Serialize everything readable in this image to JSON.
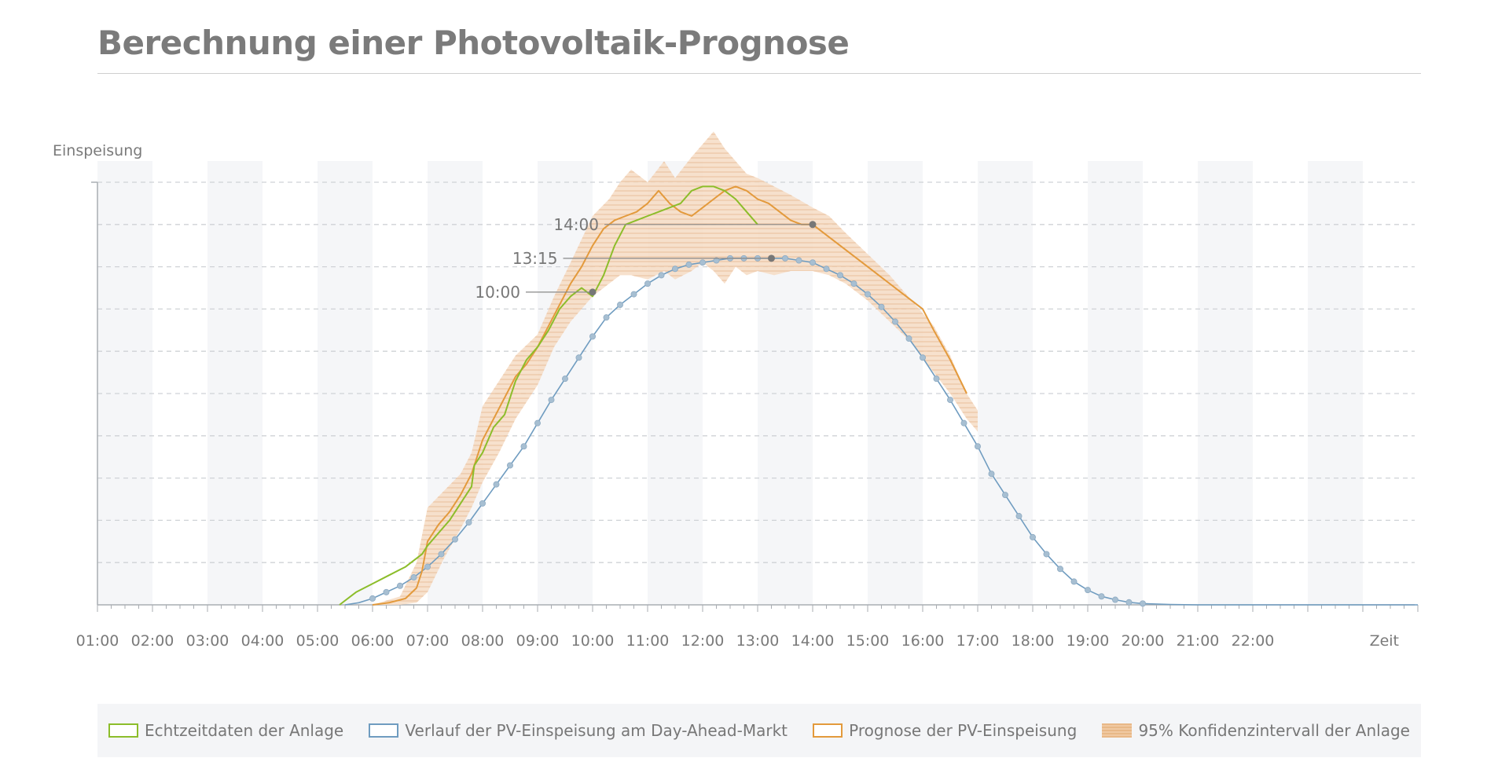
{
  "title": "Berechnung einer Photovoltaik-Prognose",
  "colors": {
    "actual": "#8cbd2a",
    "dayahead": "#6f9cc0",
    "forecast": "#e39a3c",
    "confidence": "#ecb98a",
    "grid": "#cfd2d6",
    "axis": "#a9adb2"
  },
  "legend": {
    "actual": "Echtzeitdaten der Anlage",
    "dayahead": "Verlauf der PV-Einspeisung am Day-Ahead-Markt",
    "forecast": "Prognose der PV-Einspeisung",
    "confidence": "95% Konfidenzintervall der Anlage"
  },
  "chart_data": {
    "type": "line",
    "ylabel": "Einspeisung",
    "xlabel": "Zeit",
    "x_ticks": [
      "01:00",
      "02:00",
      "03:00",
      "04:00",
      "05:00",
      "06:00",
      "07:00",
      "08:00",
      "09:00",
      "10:00",
      "11:00",
      "12:00",
      "13:00",
      "14:00",
      "15:00",
      "16:00",
      "17:00",
      "18:00",
      "19:00",
      "20:00",
      "21:00",
      "22:00"
    ],
    "xlim": [
      1,
      25
    ],
    "ylim": [
      0,
      10
    ],
    "annotations": [
      {
        "label": "10:00",
        "x": 10.0,
        "y": 7.4
      },
      {
        "label": "13:15",
        "x": 13.25,
        "y": 8.2
      },
      {
        "label": "14:00",
        "x": 14.0,
        "y": 9.0
      }
    ],
    "series": [
      {
        "name": "Echtzeitdaten der Anlage",
        "key": "actual",
        "x": [
          5.4,
          5.7,
          6.0,
          6.3,
          6.6,
          6.9,
          7.0,
          7.2,
          7.4,
          7.6,
          7.8,
          7.85,
          8.0,
          8.2,
          8.4,
          8.6,
          8.8,
          9.0,
          9.2,
          9.4,
          9.6,
          9.8,
          10.0,
          10.2,
          10.4,
          10.6,
          10.8,
          11.0,
          11.2,
          11.4,
          11.6,
          11.8,
          12.0,
          12.2,
          12.4,
          12.6,
          12.8,
          13.0
        ],
        "y": [
          0.0,
          0.3,
          0.5,
          0.7,
          0.9,
          1.2,
          1.4,
          1.7,
          2.0,
          2.4,
          2.8,
          3.3,
          3.6,
          4.2,
          4.5,
          5.3,
          5.8,
          6.1,
          6.5,
          7.0,
          7.3,
          7.5,
          7.3,
          7.8,
          8.5,
          9.0,
          9.1,
          9.2,
          9.3,
          9.4,
          9.5,
          9.8,
          9.9,
          9.9,
          9.8,
          9.6,
          9.3,
          9.0
        ]
      },
      {
        "name": "Verlauf der PV-Einspeisung am Day-Ahead-Markt",
        "key": "dayahead",
        "x": [
          5.5,
          5.75,
          6.0,
          6.25,
          6.5,
          6.75,
          7.0,
          7.25,
          7.5,
          7.75,
          8.0,
          8.25,
          8.5,
          8.75,
          9.0,
          9.25,
          9.5,
          9.75,
          10.0,
          10.25,
          10.5,
          10.75,
          11.0,
          11.25,
          11.5,
          11.75,
          12.0,
          12.25,
          12.5,
          12.75,
          13.0,
          13.25,
          13.5,
          13.75,
          14.0,
          14.25,
          14.5,
          14.75,
          15.0,
          15.25,
          15.5,
          15.75,
          16.0,
          16.25,
          16.5,
          16.75,
          17.0,
          17.25,
          17.5,
          17.75,
          18.0,
          18.25,
          18.5,
          18.75,
          19.0,
          19.25,
          19.5,
          19.75,
          20.0,
          20.5,
          21.0,
          21.5,
          22.0,
          23.0,
          24.0,
          25.0
        ],
        "y": [
          0.0,
          0.05,
          0.15,
          0.3,
          0.45,
          0.65,
          0.9,
          1.2,
          1.55,
          1.95,
          2.4,
          2.85,
          3.3,
          3.75,
          4.3,
          4.85,
          5.35,
          5.85,
          6.35,
          6.8,
          7.1,
          7.35,
          7.6,
          7.8,
          7.95,
          8.05,
          8.1,
          8.15,
          8.2,
          8.2,
          8.2,
          8.2,
          8.2,
          8.15,
          8.1,
          7.95,
          7.8,
          7.6,
          7.35,
          7.05,
          6.7,
          6.3,
          5.85,
          5.35,
          4.85,
          4.3,
          3.75,
          3.1,
          2.6,
          2.1,
          1.6,
          1.2,
          0.85,
          0.55,
          0.35,
          0.2,
          0.12,
          0.06,
          0.03,
          0.01,
          0.0,
          0.0,
          0.0,
          0.0,
          0.0,
          0.0
        ]
      },
      {
        "name": "Prognose der PV-Einspeisung",
        "key": "forecast",
        "x": [
          6.0,
          6.3,
          6.6,
          6.8,
          6.9,
          7.0,
          7.2,
          7.4,
          7.6,
          7.8,
          8.0,
          8.2,
          8.4,
          8.6,
          8.8,
          9.0,
          9.2,
          9.4,
          9.6,
          9.8,
          10.0,
          10.2,
          10.4,
          10.6,
          10.8,
          11.0,
          11.2,
          11.4,
          11.6,
          11.8,
          12.0,
          12.2,
          12.4,
          12.6,
          12.8,
          13.0,
          13.2,
          13.4,
          13.6,
          13.8,
          14.0,
          14.5,
          15.0,
          15.5,
          16.0,
          16.2,
          16.5,
          16.8
        ],
        "y": [
          0.0,
          0.05,
          0.15,
          0.4,
          0.8,
          1.5,
          1.9,
          2.2,
          2.6,
          3.1,
          3.9,
          4.4,
          4.9,
          5.4,
          5.7,
          6.1,
          6.6,
          7.1,
          7.6,
          8.0,
          8.5,
          8.9,
          9.1,
          9.2,
          9.3,
          9.5,
          9.8,
          9.5,
          9.3,
          9.2,
          9.4,
          9.6,
          9.8,
          9.9,
          9.8,
          9.6,
          9.5,
          9.3,
          9.1,
          9.0,
          9.0,
          8.5,
          8.0,
          7.5,
          7.0,
          6.5,
          5.8,
          5.0
        ]
      }
    ],
    "confidence_interval": {
      "name": "95% Konfidenzintervall der Anlage",
      "x": [
        6.0,
        6.5,
        6.8,
        7.0,
        7.3,
        7.6,
        7.8,
        8.0,
        8.3,
        8.6,
        9.0,
        9.3,
        9.6,
        10.0,
        10.3,
        10.5,
        10.7,
        11.0,
        11.3,
        11.5,
        11.8,
        12.0,
        12.2,
        12.4,
        12.6,
        12.8,
        13.0,
        13.3,
        13.6,
        14.0,
        14.3,
        14.6,
        15.0,
        15.4,
        15.8,
        16.2,
        16.5,
        16.8,
        17.0
      ],
      "upper": [
        0.0,
        0.2,
        1.0,
        2.3,
        2.7,
        3.1,
        3.6,
        4.7,
        5.3,
        5.9,
        6.4,
        7.3,
        8.1,
        9.2,
        9.6,
        10.0,
        10.3,
        10.0,
        10.5,
        10.1,
        10.6,
        10.9,
        11.2,
        10.8,
        10.5,
        10.2,
        10.1,
        9.9,
        9.7,
        9.4,
        9.2,
        8.8,
        8.3,
        7.8,
        7.2,
        6.6,
        5.9,
        5.0,
        4.6
      ],
      "lower": [
        0.0,
        0.0,
        0.05,
        0.3,
        1.1,
        1.8,
        2.3,
        2.9,
        3.6,
        4.4,
        5.2,
        6.1,
        6.7,
        7.3,
        7.6,
        7.8,
        7.8,
        7.7,
        7.9,
        7.7,
        7.9,
        8.1,
        7.9,
        7.6,
        8.0,
        7.8,
        7.9,
        7.8,
        7.9,
        7.9,
        7.8,
        7.6,
        7.2,
        6.7,
        6.2,
        5.5,
        5.0,
        4.4,
        4.1
      ]
    }
  }
}
